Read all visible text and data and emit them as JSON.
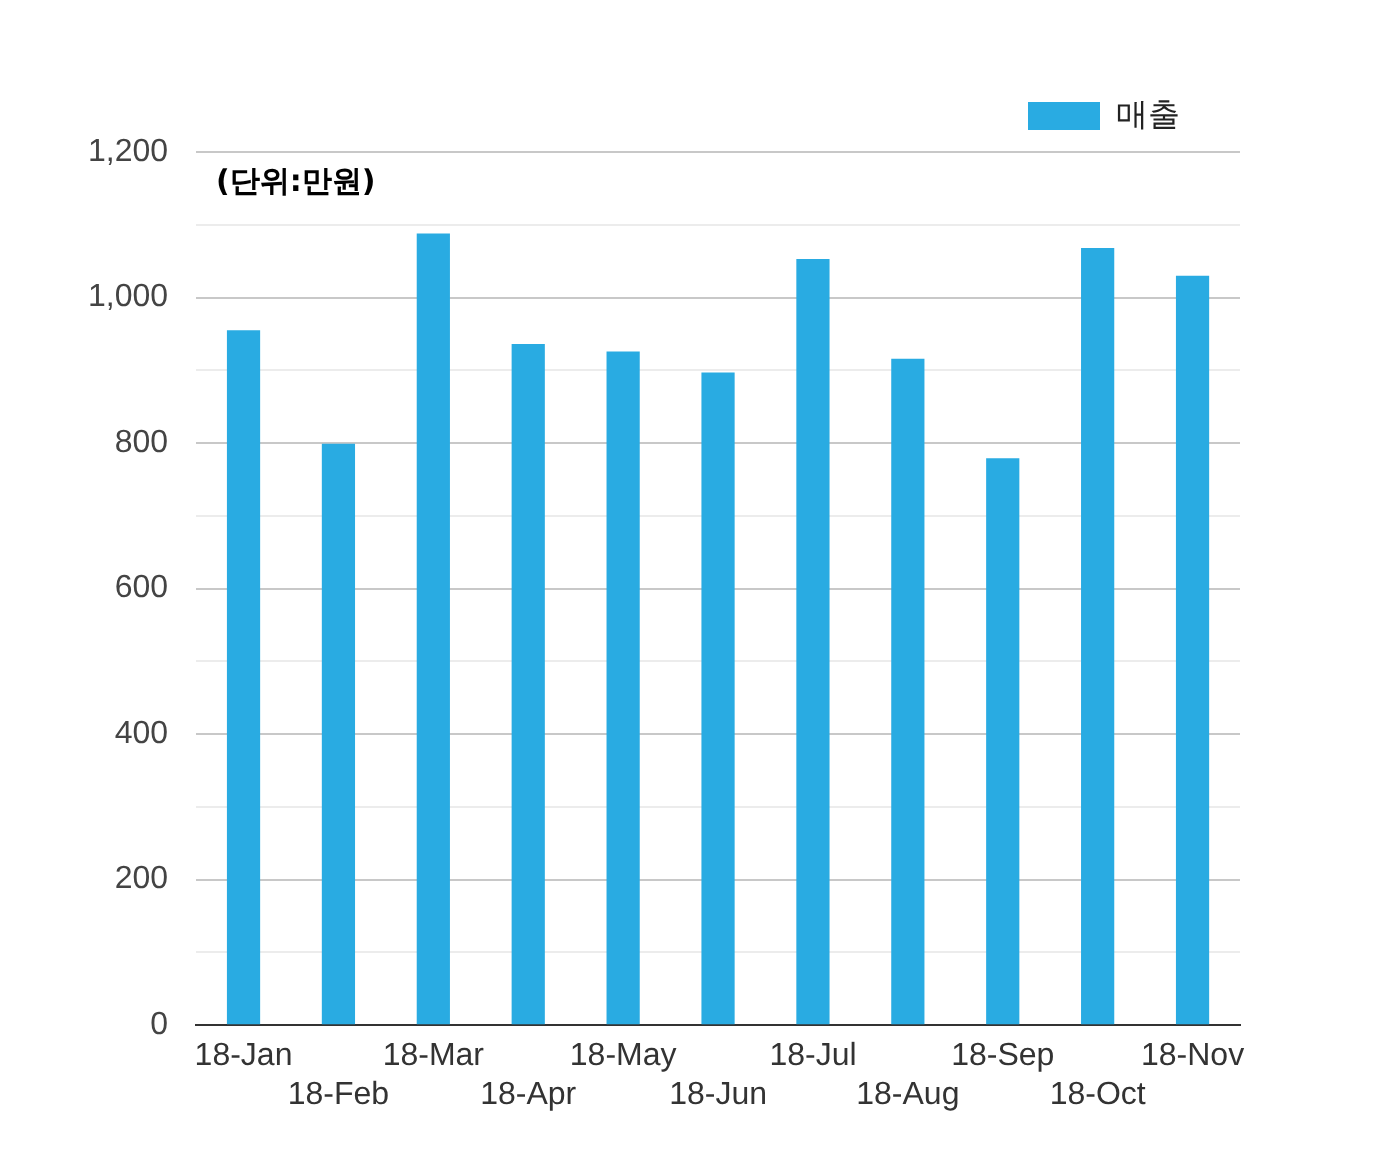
{
  "chart_data": {
    "type": "bar",
    "categories": [
      "18-Jan",
      "18-Feb",
      "18-Mar",
      "18-Apr",
      "18-May",
      "18-Jun",
      "18-Jul",
      "18-Aug",
      "18-Sep",
      "18-Oct",
      "18-Nov"
    ],
    "series": [
      {
        "name": "매출",
        "color": "#29abe2",
        "values": [
          955,
          799,
          1088,
          936,
          926,
          897,
          1053,
          916,
          779,
          1068,
          1030
        ]
      }
    ],
    "ylim": [
      0,
      1200
    ],
    "yticks": [
      0,
      {
        "value": 100,
        "label": null
      },
      {
        "value": 200,
        "label": "200"
      },
      {
        "value": 300,
        "label": null
      },
      {
        "value": 400,
        "label": "400"
      },
      {
        "value": 500,
        "label": null
      },
      {
        "value": 600,
        "label": "600"
      },
      {
        "value": 700,
        "label": null
      },
      {
        "value": 800,
        "label": "800"
      },
      {
        "value": 900,
        "label": null
      },
      {
        "value": 1000,
        "label": "1,000"
      },
      {
        "value": 1100,
        "label": null
      },
      {
        "value": 1200,
        "label": "1,200"
      }
    ],
    "annotations": [
      "(단위:만원)"
    ],
    "grid": "y",
    "legend": "top right"
  }
}
